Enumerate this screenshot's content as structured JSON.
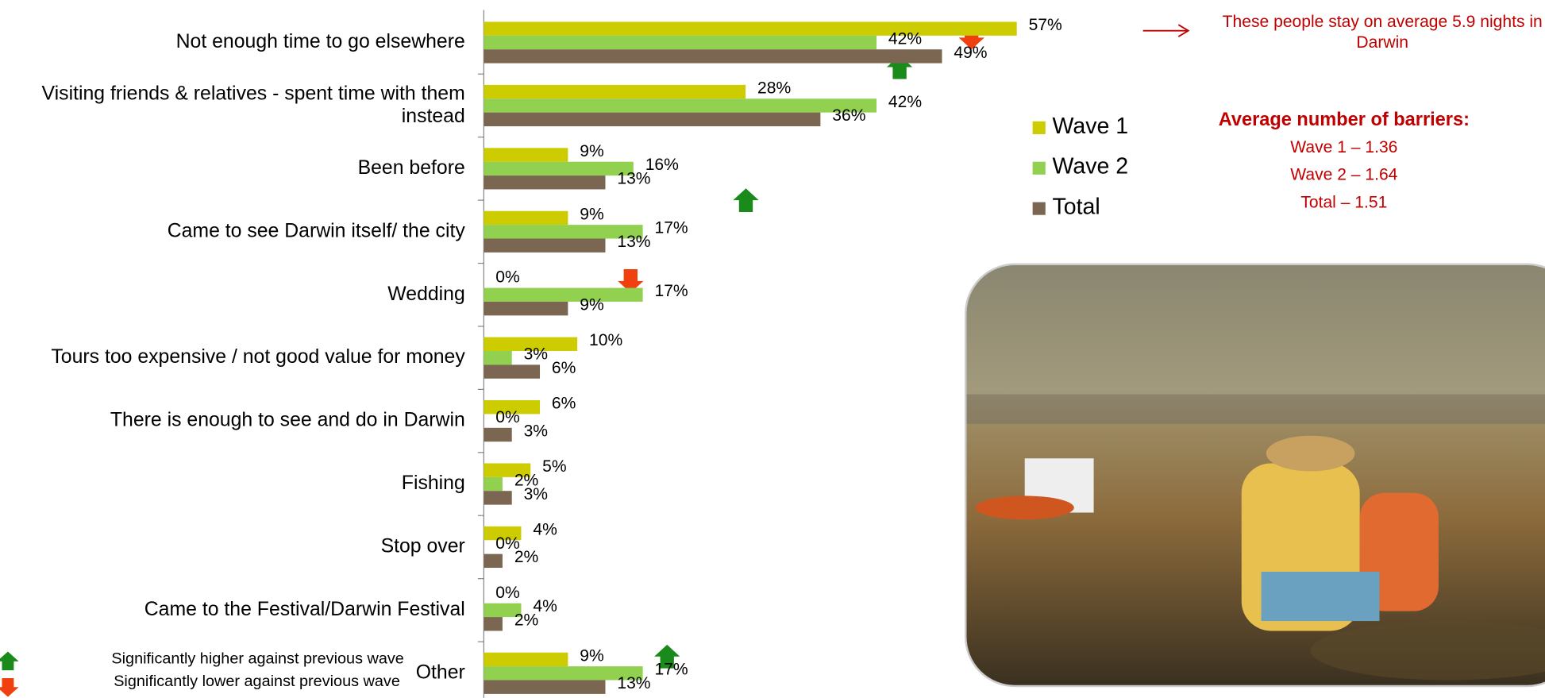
{
  "chart_data": {
    "type": "bar",
    "orientation": "horizontal",
    "categories": [
      "Not enough time to go elsewhere",
      "Visiting friends & relatives - spent time with them instead",
      "Been before",
      "Came to see Darwin itself/ the city",
      "Wedding",
      "Tours too expensive / not good value for money",
      "There is enough to see and do in Darwin",
      "Fishing",
      "Stop over",
      "Came to the Festival/Darwin Festival",
      "Other"
    ],
    "series": [
      {
        "name": "Wave 1",
        "color": "#cccc00",
        "values": [
          57,
          28,
          9,
          9,
          0,
          10,
          6,
          5,
          4,
          0,
          9
        ],
        "value_labels": [
          "57%",
          "28%",
          "9%",
          "9%",
          "0%",
          "10%",
          "6%",
          "5%",
          "4%",
          "0%",
          "9%"
        ]
      },
      {
        "name": "Wave 2",
        "color": "#92d050",
        "values": [
          42,
          42,
          16,
          17,
          17,
          3,
          0,
          2,
          0,
          4,
          17
        ],
        "value_labels": [
          "42%",
          "42%",
          "16%",
          "17%",
          "17%",
          "3%",
          "0%",
          "2%",
          "0%",
          "4%",
          "17%"
        ]
      },
      {
        "name": "Total",
        "color": "#7b6651",
        "values": [
          49,
          36,
          13,
          13,
          9,
          6,
          3,
          3,
          2,
          2,
          13
        ],
        "value_labels": [
          "49%",
          "36%",
          "13%",
          "13%",
          "9%",
          "6%",
          "3%",
          "3%",
          "2%",
          "2%",
          "13%"
        ]
      }
    ],
    "xlim": [
      0,
      100
    ],
    "legend": "right"
  },
  "notes": {
    "stay": "These people stay on average 5.9 nights in Darwin",
    "barriers_title": "Average number of barriers:",
    "barriers": [
      "Wave 1 – 1.36",
      "Wave 2 – 1.64",
      "Total – 1.51"
    ],
    "sig_higher": "Significantly higher against previous wave",
    "sig_lower": "Significantly lower against previous wave"
  }
}
